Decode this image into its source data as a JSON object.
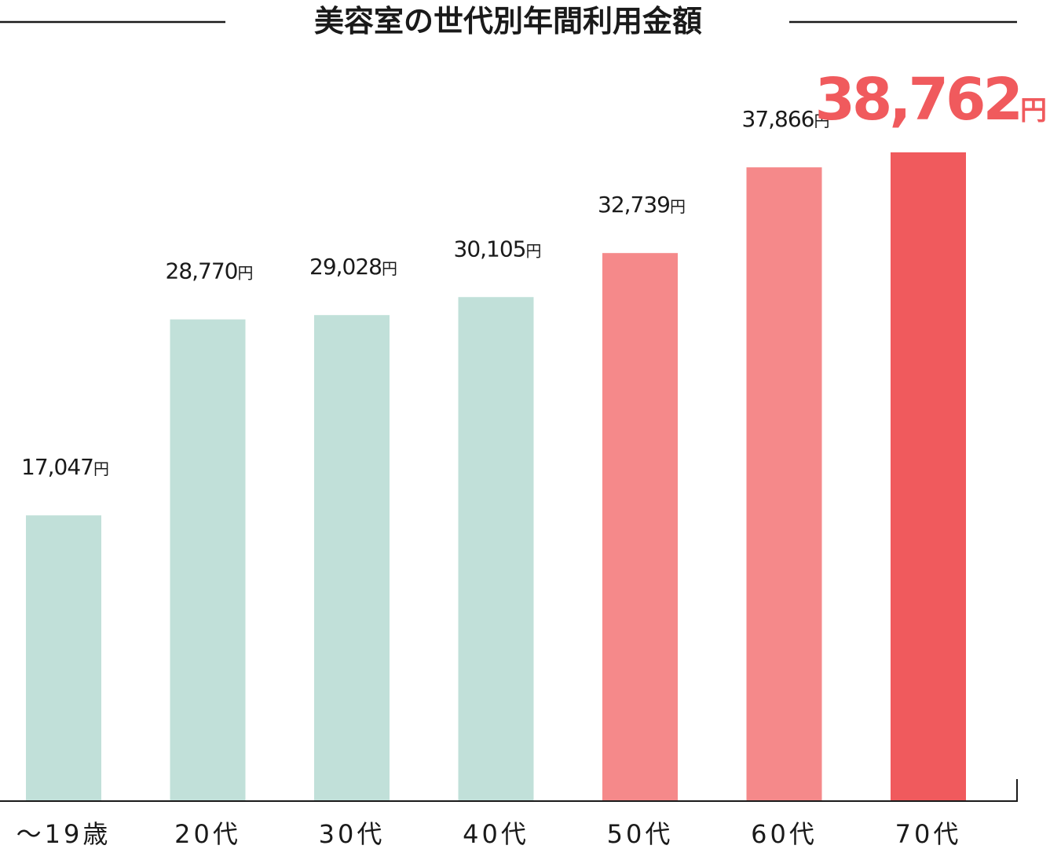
{
  "chart_data": {
    "type": "bar",
    "title": "美容室の世代別年間利用金額",
    "categories": [
      "～19歳",
      "20代",
      "30代",
      "40代",
      "50代",
      "60代",
      "70代"
    ],
    "values": [
      17047,
      28770,
      29028,
      30105,
      32739,
      37866,
      38762
    ],
    "value_labels": [
      "17,047",
      "28,770",
      "29,028",
      "30,105",
      "32,739",
      "37,866",
      "38,762"
    ],
    "unit": "円",
    "highlight_index": 6,
    "ylim": [
      0,
      38762
    ],
    "grid": false,
    "legend": "none"
  },
  "colors": {
    "teal": "#c1e0d9",
    "pink": "#f5898a",
    "red": "#f05a5d",
    "text": "#1a1a1a",
    "axis": "#1a1a1a"
  },
  "bar_color_groups": [
    "teal",
    "teal",
    "teal",
    "teal",
    "pink",
    "pink",
    "red"
  ]
}
